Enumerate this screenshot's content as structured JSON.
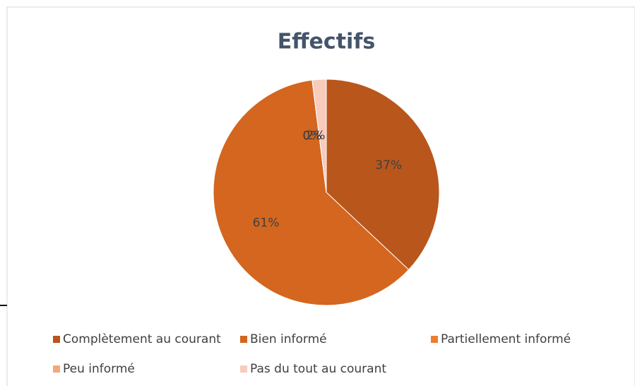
{
  "chart_data": {
    "type": "pie",
    "title": "Effectifs",
    "categories": [
      "Complètement au courant",
      "Bien informé",
      "Partiellement informé",
      "Peu informé",
      "Pas du tout au courant"
    ],
    "values": [
      37,
      61,
      0,
      0,
      2
    ],
    "value_labels": [
      "37%",
      "61%",
      "0%",
      "0%",
      "2%"
    ],
    "colors": [
      "#b9561c",
      "#d4661f",
      "#ed7d31",
      "#f4a77b",
      "#f8cbbd"
    ],
    "legend": "bottom"
  }
}
